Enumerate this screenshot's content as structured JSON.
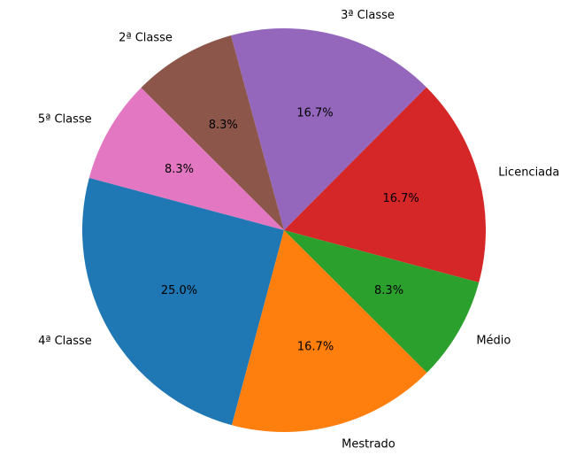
{
  "chart_data": {
    "type": "pie",
    "title": "",
    "categories": [
      "Licenciada",
      "3ª Classe",
      "2ª Classe",
      "5ª Classe",
      "4ª Classe",
      "Mestrado",
      "Médio"
    ],
    "values": [
      16.7,
      16.7,
      8.3,
      8.3,
      25.0,
      16.7,
      8.3
    ],
    "value_labels": [
      "16.7%",
      "16.7%",
      "8.3%",
      "8.3%",
      "25.0%",
      "16.7%",
      "8.3%"
    ],
    "colors": [
      "#d62728",
      "#9467bd",
      "#8c564b",
      "#e377c2",
      "#1f77b4",
      "#ff7f0e",
      "#2ca02c"
    ],
    "start_angle_deg": -15,
    "direction": "counterclockwise",
    "legend": "none"
  }
}
